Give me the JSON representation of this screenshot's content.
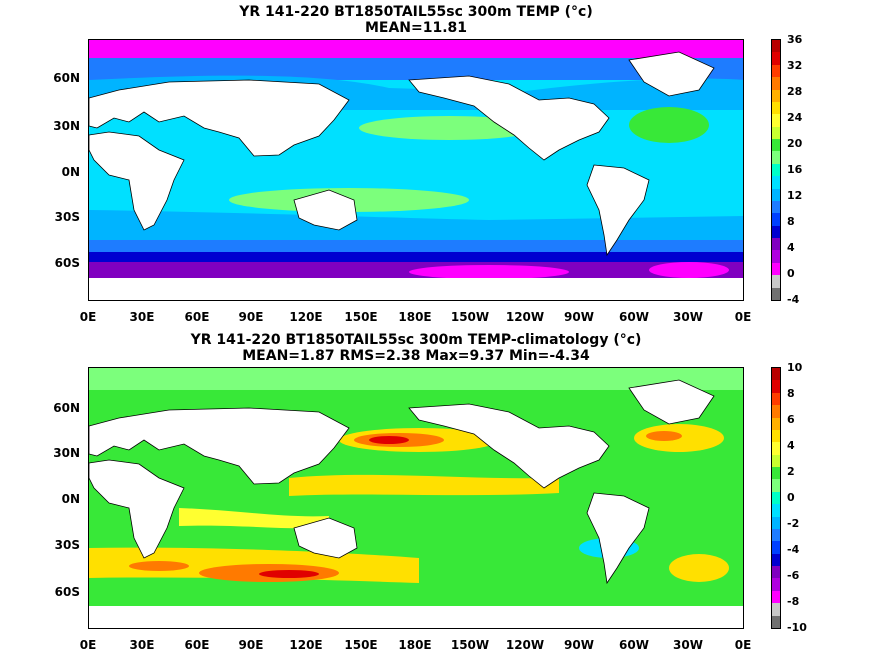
{
  "panels": [
    {
      "title_line1": "YR 141-220 BT1850TAIL55sc 300m TEMP (°c)",
      "title_line2": "MEAN=11.81",
      "colorbar_labels": [
        "36",
        "32",
        "28",
        "24",
        "20",
        "16",
        "12",
        "8",
        "4",
        "0",
        "-4"
      ],
      "colorbar_colors": [
        "#b80000",
        "#e00000",
        "#ff3c00",
        "#ff7a00",
        "#ffb000",
        "#ffe000",
        "#ffff30",
        "#c8ff30",
        "#38e838",
        "#7cff7c",
        "#00ffc8",
        "#00e0ff",
        "#00b4ff",
        "#1e7cff",
        "#0040ff",
        "#0000d0",
        "#8000c0",
        "#b000e0",
        "#ff00ff",
        "#c8c8c8",
        "#707070"
      ]
    },
    {
      "title_line1": "YR 141-220 BT1850TAIL55sc 300m TEMP-climatology (°c)",
      "title_line2": "MEAN=1.87   RMS=2.38   Max=9.37   Min=-4.34",
      "colorbar_labels": [
        "10",
        "8",
        "6",
        "4",
        "2",
        "0",
        "-2",
        "-4",
        "-6",
        "-8",
        "-10"
      ],
      "colorbar_colors": [
        "#b80000",
        "#e00000",
        "#ff3c00",
        "#ff7a00",
        "#ffb000",
        "#ffe000",
        "#ffff30",
        "#c8ff30",
        "#38e838",
        "#7cff7c",
        "#00ffc8",
        "#00e0ff",
        "#00b4ff",
        "#1e7cff",
        "#0040ff",
        "#0000d0",
        "#8000c0",
        "#b000e0",
        "#ff00ff",
        "#c8c8c8",
        "#707070"
      ]
    }
  ],
  "lat_labels": [
    "60N",
    "30N",
    "0N",
    "30S",
    "60S"
  ],
  "lon_labels": [
    "0E",
    "30E",
    "60E",
    "90E",
    "120E",
    "150E",
    "180E",
    "150W",
    "120W",
    "90W",
    "60W",
    "30W",
    "0E"
  ],
  "colors": {
    "land": "#ffffff",
    "coast": "#000000"
  }
}
